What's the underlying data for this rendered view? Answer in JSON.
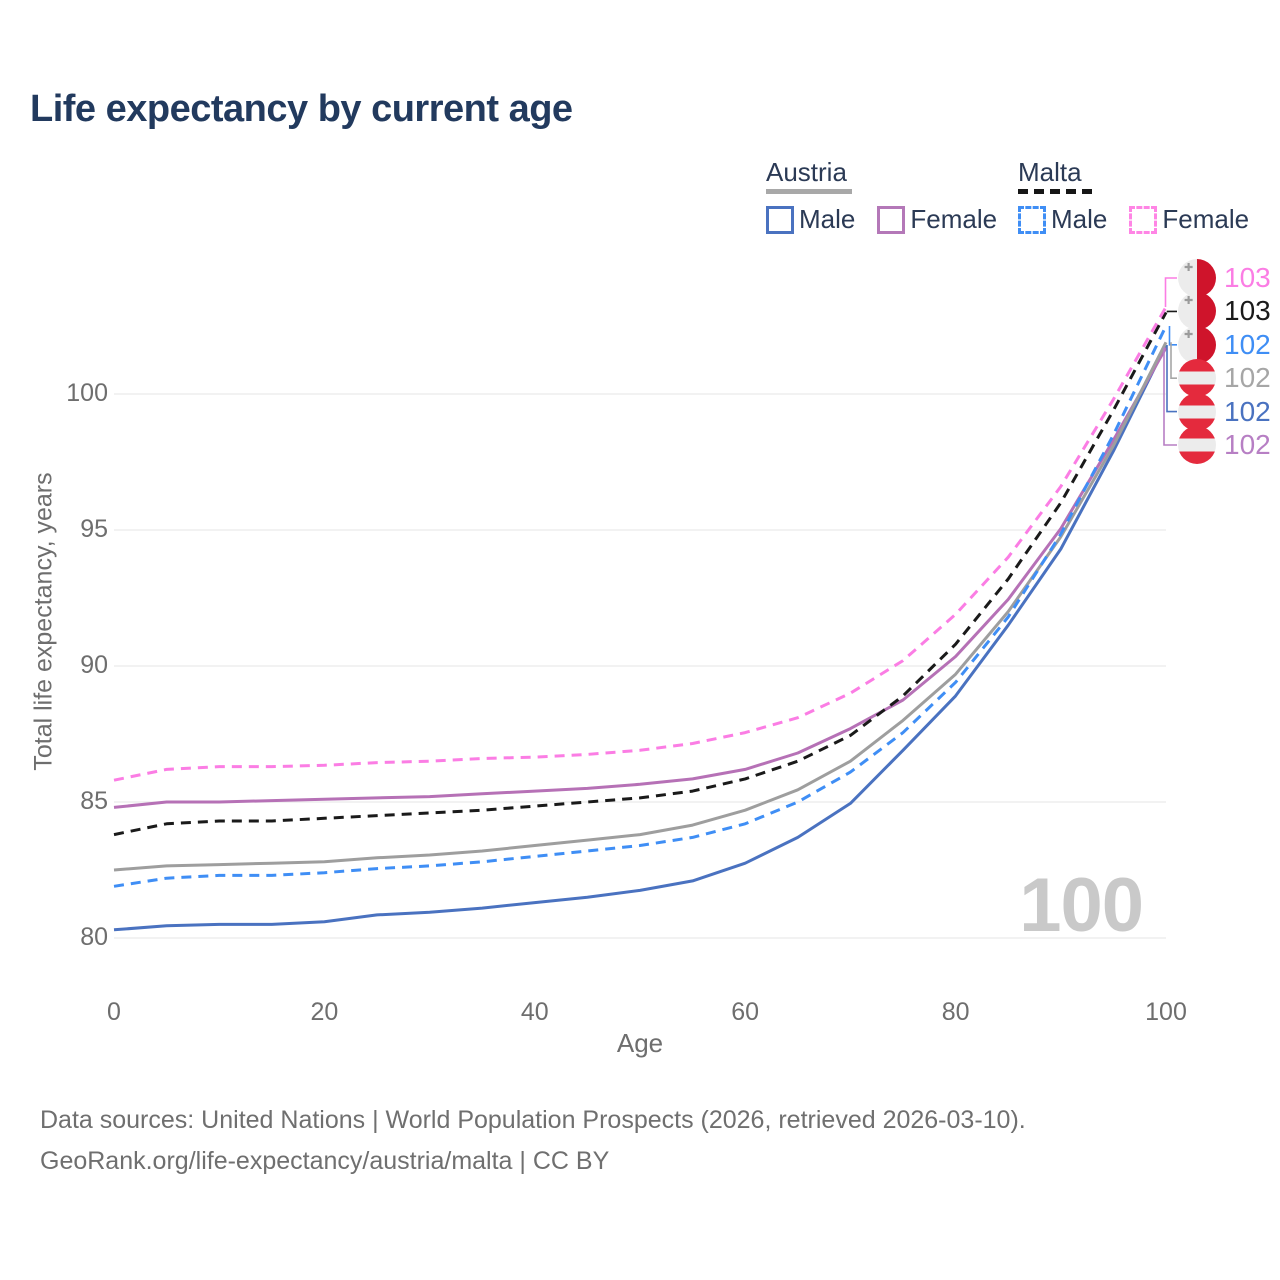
{
  "title": "Life expectancy by current age",
  "colors": {
    "title_text": "#223a5e",
    "legend_text": "#2b3a55",
    "axis_text": "#6e6e6e",
    "grid": "#ebebeb",
    "watermark": "#c9c9c9",
    "footer_text": "#6f6f6f",
    "malta_flag_red": "#cf142b",
    "austria_flag_red": "#e42a3d"
  },
  "legend": {
    "groups": [
      {
        "label": "Austria",
        "underline_color": "#a8a8a8",
        "underline_style": "solid",
        "items": [
          {
            "label": "Male",
            "color": "#4a72c0",
            "dash": false
          },
          {
            "label": "Female",
            "color": "#b478b8",
            "dash": false
          }
        ]
      },
      {
        "label": "Malta",
        "underline_color": "#161616",
        "underline_style": "dashed",
        "items": [
          {
            "label": "Male",
            "color": "#3f8ef5",
            "dash": true
          },
          {
            "label": "Female",
            "color": "#ff85e5",
            "dash": true
          }
        ]
      }
    ]
  },
  "chart_data": {
    "type": "line",
    "title": "Life expectancy by current age",
    "xlabel": "Age",
    "ylabel": "Total life expectancy, years",
    "xlim": [
      0,
      100
    ],
    "ylim": [
      80,
      100
    ],
    "xticks": [
      0,
      20,
      40,
      60,
      80,
      100
    ],
    "yticks": [
      80,
      85,
      90,
      95,
      100
    ],
    "grid": "horizontal",
    "legend_position": "top-right",
    "x": [
      0,
      5,
      10,
      15,
      20,
      25,
      30,
      35,
      40,
      45,
      50,
      55,
      60,
      65,
      70,
      75,
      80,
      85,
      90,
      95,
      100
    ],
    "series": [
      {
        "name": "Austria Male",
        "country": "Austria",
        "sex": "Male",
        "color": "#4a72c0",
        "dash": "solid",
        "values": [
          80.3,
          80.45,
          80.5,
          80.5,
          80.6,
          80.85,
          80.95,
          81.1,
          81.3,
          81.5,
          81.75,
          82.1,
          82.75,
          83.7,
          84.95,
          86.9,
          88.9,
          91.5,
          94.3,
          97.9,
          101.8
        ]
      },
      {
        "name": "Austria Female",
        "country": "Austria",
        "sex": "Female",
        "color": "#b671b6",
        "dash": "solid",
        "values": [
          84.8,
          85.0,
          85.0,
          85.05,
          85.1,
          85.15,
          85.2,
          85.3,
          85.4,
          85.5,
          85.65,
          85.85,
          86.2,
          86.8,
          87.7,
          88.75,
          90.35,
          92.45,
          95.05,
          98.3,
          101.7
        ]
      },
      {
        "name": "Austria",
        "country": "Austria",
        "sex": "Both",
        "color": "#9e9e9e",
        "dash": "solid",
        "values": [
          82.5,
          82.65,
          82.7,
          82.75,
          82.8,
          82.95,
          83.05,
          83.2,
          83.4,
          83.6,
          83.8,
          84.15,
          84.7,
          85.45,
          86.5,
          88.0,
          89.7,
          92.0,
          94.75,
          98.1,
          101.9
        ]
      },
      {
        "name": "Malta",
        "country": "Malta",
        "sex": "Both",
        "color": "#1a1a1a",
        "dash": "dashed",
        "values": [
          83.8,
          84.2,
          84.3,
          84.3,
          84.4,
          84.5,
          84.6,
          84.7,
          84.85,
          85.0,
          85.15,
          85.4,
          85.85,
          86.5,
          87.45,
          88.9,
          90.8,
          93.2,
          96.0,
          99.4,
          103.0
        ]
      },
      {
        "name": "Malta Male",
        "country": "Malta",
        "sex": "Male",
        "color": "#3f8ef5",
        "dash": "dashed",
        "values": [
          81.9,
          82.2,
          82.3,
          82.3,
          82.4,
          82.55,
          82.65,
          82.8,
          83.0,
          83.2,
          83.4,
          83.7,
          84.2,
          85.0,
          86.1,
          87.55,
          89.4,
          91.8,
          94.85,
          98.5,
          102.5
        ]
      },
      {
        "name": "Malta Female",
        "country": "Malta",
        "sex": "Female",
        "color": "#fb7de4",
        "dash": "dashed",
        "values": [
          85.8,
          86.2,
          86.3,
          86.3,
          86.35,
          86.45,
          86.5,
          86.6,
          86.65,
          86.75,
          86.9,
          87.15,
          87.55,
          88.1,
          89.0,
          90.2,
          91.9,
          94.0,
          96.6,
          99.8,
          103.2
        ]
      }
    ]
  },
  "end_labels": {
    "rows": [
      {
        "value": "103",
        "series": "Malta Female",
        "flag": "malta",
        "color": "#fb7de4"
      },
      {
        "value": "103",
        "series": "Malta",
        "flag": "malta",
        "color": "#1a1a1a"
      },
      {
        "value": "102",
        "series": "Malta Male",
        "flag": "malta",
        "color": "#3f8ef5"
      },
      {
        "value": "102",
        "series": "Austria",
        "flag": "austria",
        "color": "#a6a6a6"
      },
      {
        "value": "102",
        "series": "Austria Male",
        "flag": "austria",
        "color": "#4a72c0"
      },
      {
        "value": "102",
        "series": "Austria Female",
        "flag": "austria",
        "color": "#b77fc4"
      }
    ]
  },
  "watermark": "100",
  "footer": {
    "line1": "Data sources: United Nations | World Population Prospects (2026, retrieved 2026-03-10).",
    "line2": "GeoRank.org/life-expectancy/austria/malta | CC BY"
  }
}
